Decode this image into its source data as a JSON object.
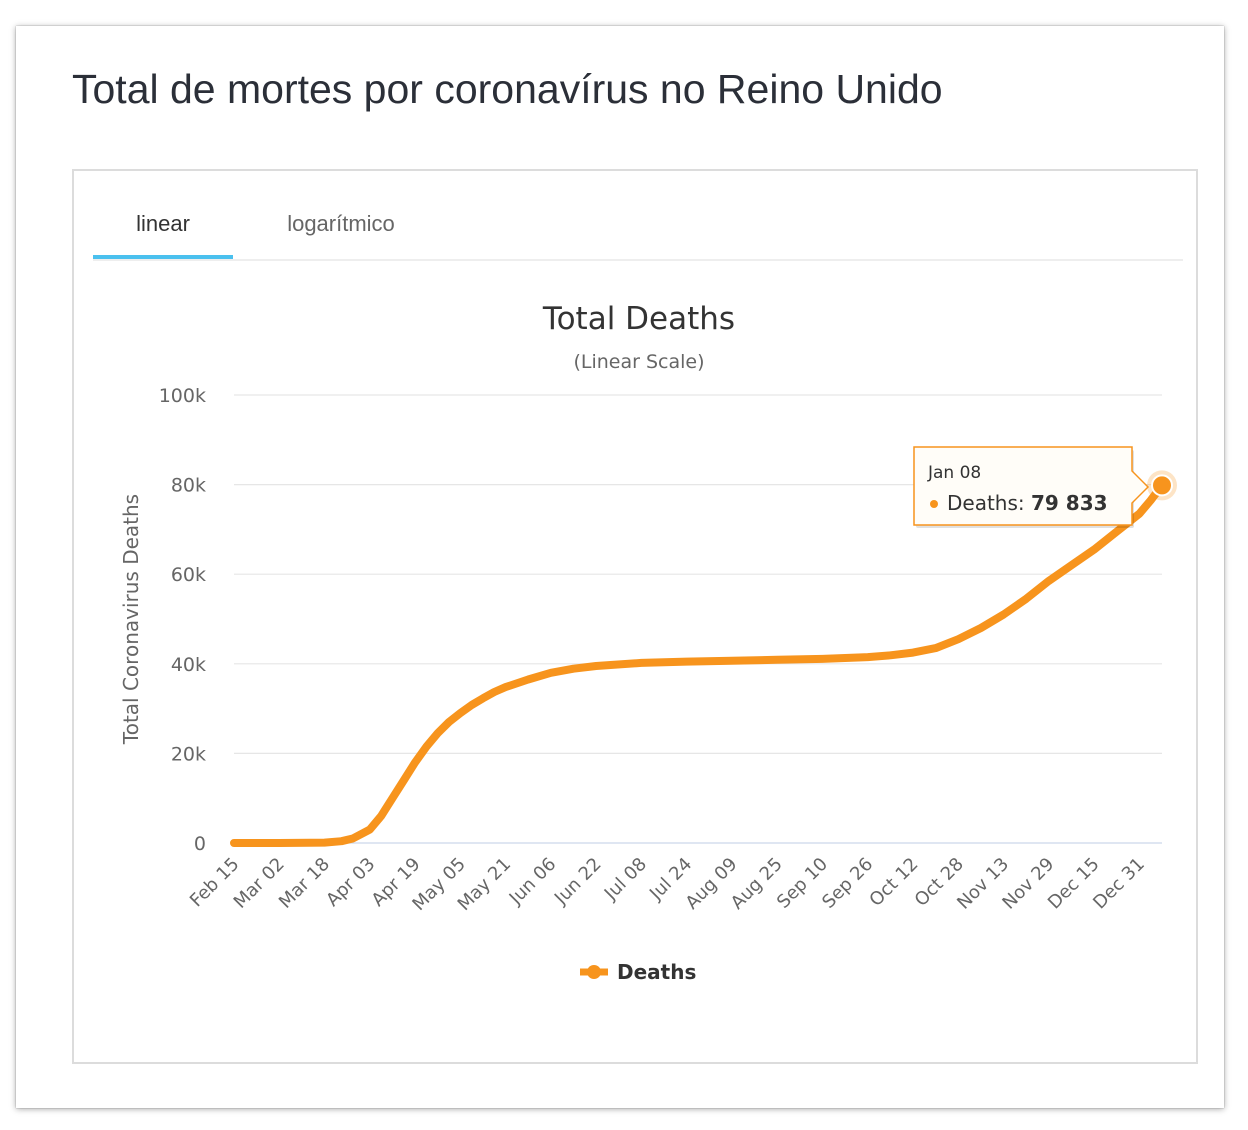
{
  "page_title": "Total de mortes por coronavírus no Reino Unido",
  "tabs": [
    {
      "label": "linear",
      "active": true
    },
    {
      "label": "logarítmico",
      "active": false
    }
  ],
  "colors": {
    "series": "#f7941d",
    "tab_underline": "#4ac0ee",
    "grid": "#e6e6e6",
    "baseline": "#ccd6eb"
  },
  "tooltip": {
    "date": "Jan 08",
    "series_label": "Deaths",
    "value_text": "79 833"
  },
  "chart_data": {
    "type": "line",
    "title": "Total Deaths",
    "subtitle": "(Linear Scale)",
    "xlabel": "",
    "ylabel": "Total Coronavirus Deaths",
    "ylim": [
      0,
      100000
    ],
    "yticks": [
      0,
      20000,
      40000,
      60000,
      80000,
      100000
    ],
    "ytick_labels": [
      "0",
      "20k",
      "40k",
      "60k",
      "80k",
      "100k"
    ],
    "x_start": "2020-02-15",
    "x_end": "2021-01-08",
    "xtick_labels": [
      "Feb 15",
      "Mar 02",
      "Mar 18",
      "Apr 03",
      "Apr 19",
      "May 05",
      "May 21",
      "Jun 06",
      "Jun 22",
      "Jul 08",
      "Jul 24",
      "Aug 09",
      "Aug 25",
      "Sep 10",
      "Sep 26",
      "Oct 12",
      "Oct 28",
      "Nov 13",
      "Nov 29",
      "Dec 15",
      "Dec 31"
    ],
    "legend_position": "bottom-center",
    "grid": true,
    "series": [
      {
        "name": "Deaths",
        "x": [
          "2020-02-15",
          "2020-03-02",
          "2020-03-18",
          "2020-03-24",
          "2020-03-28",
          "2020-04-03",
          "2020-04-07",
          "2020-04-11",
          "2020-04-15",
          "2020-04-19",
          "2020-04-23",
          "2020-04-27",
          "2020-05-01",
          "2020-05-05",
          "2020-05-09",
          "2020-05-13",
          "2020-05-17",
          "2020-05-21",
          "2020-05-29",
          "2020-06-06",
          "2020-06-14",
          "2020-06-22",
          "2020-07-08",
          "2020-07-24",
          "2020-08-09",
          "2020-08-25",
          "2020-09-10",
          "2020-09-26",
          "2020-10-04",
          "2020-10-12",
          "2020-10-20",
          "2020-10-28",
          "2020-11-05",
          "2020-11-13",
          "2020-11-21",
          "2020-11-29",
          "2020-12-07",
          "2020-12-15",
          "2020-12-23",
          "2020-12-31",
          "2021-01-04",
          "2021-01-08"
        ],
        "y": [
          0,
          0,
          100,
          400,
          1000,
          3000,
          6000,
          10000,
          14000,
          18000,
          21500,
          24500,
          27000,
          29000,
          30800,
          32300,
          33700,
          34800,
          36500,
          38000,
          38900,
          39500,
          40200,
          40500,
          40700,
          40900,
          41100,
          41500,
          41900,
          42500,
          43500,
          45500,
          48000,
          51000,
          54500,
          58500,
          62000,
          65500,
          69500,
          73500,
          76500,
          79833
        ]
      }
    ]
  }
}
